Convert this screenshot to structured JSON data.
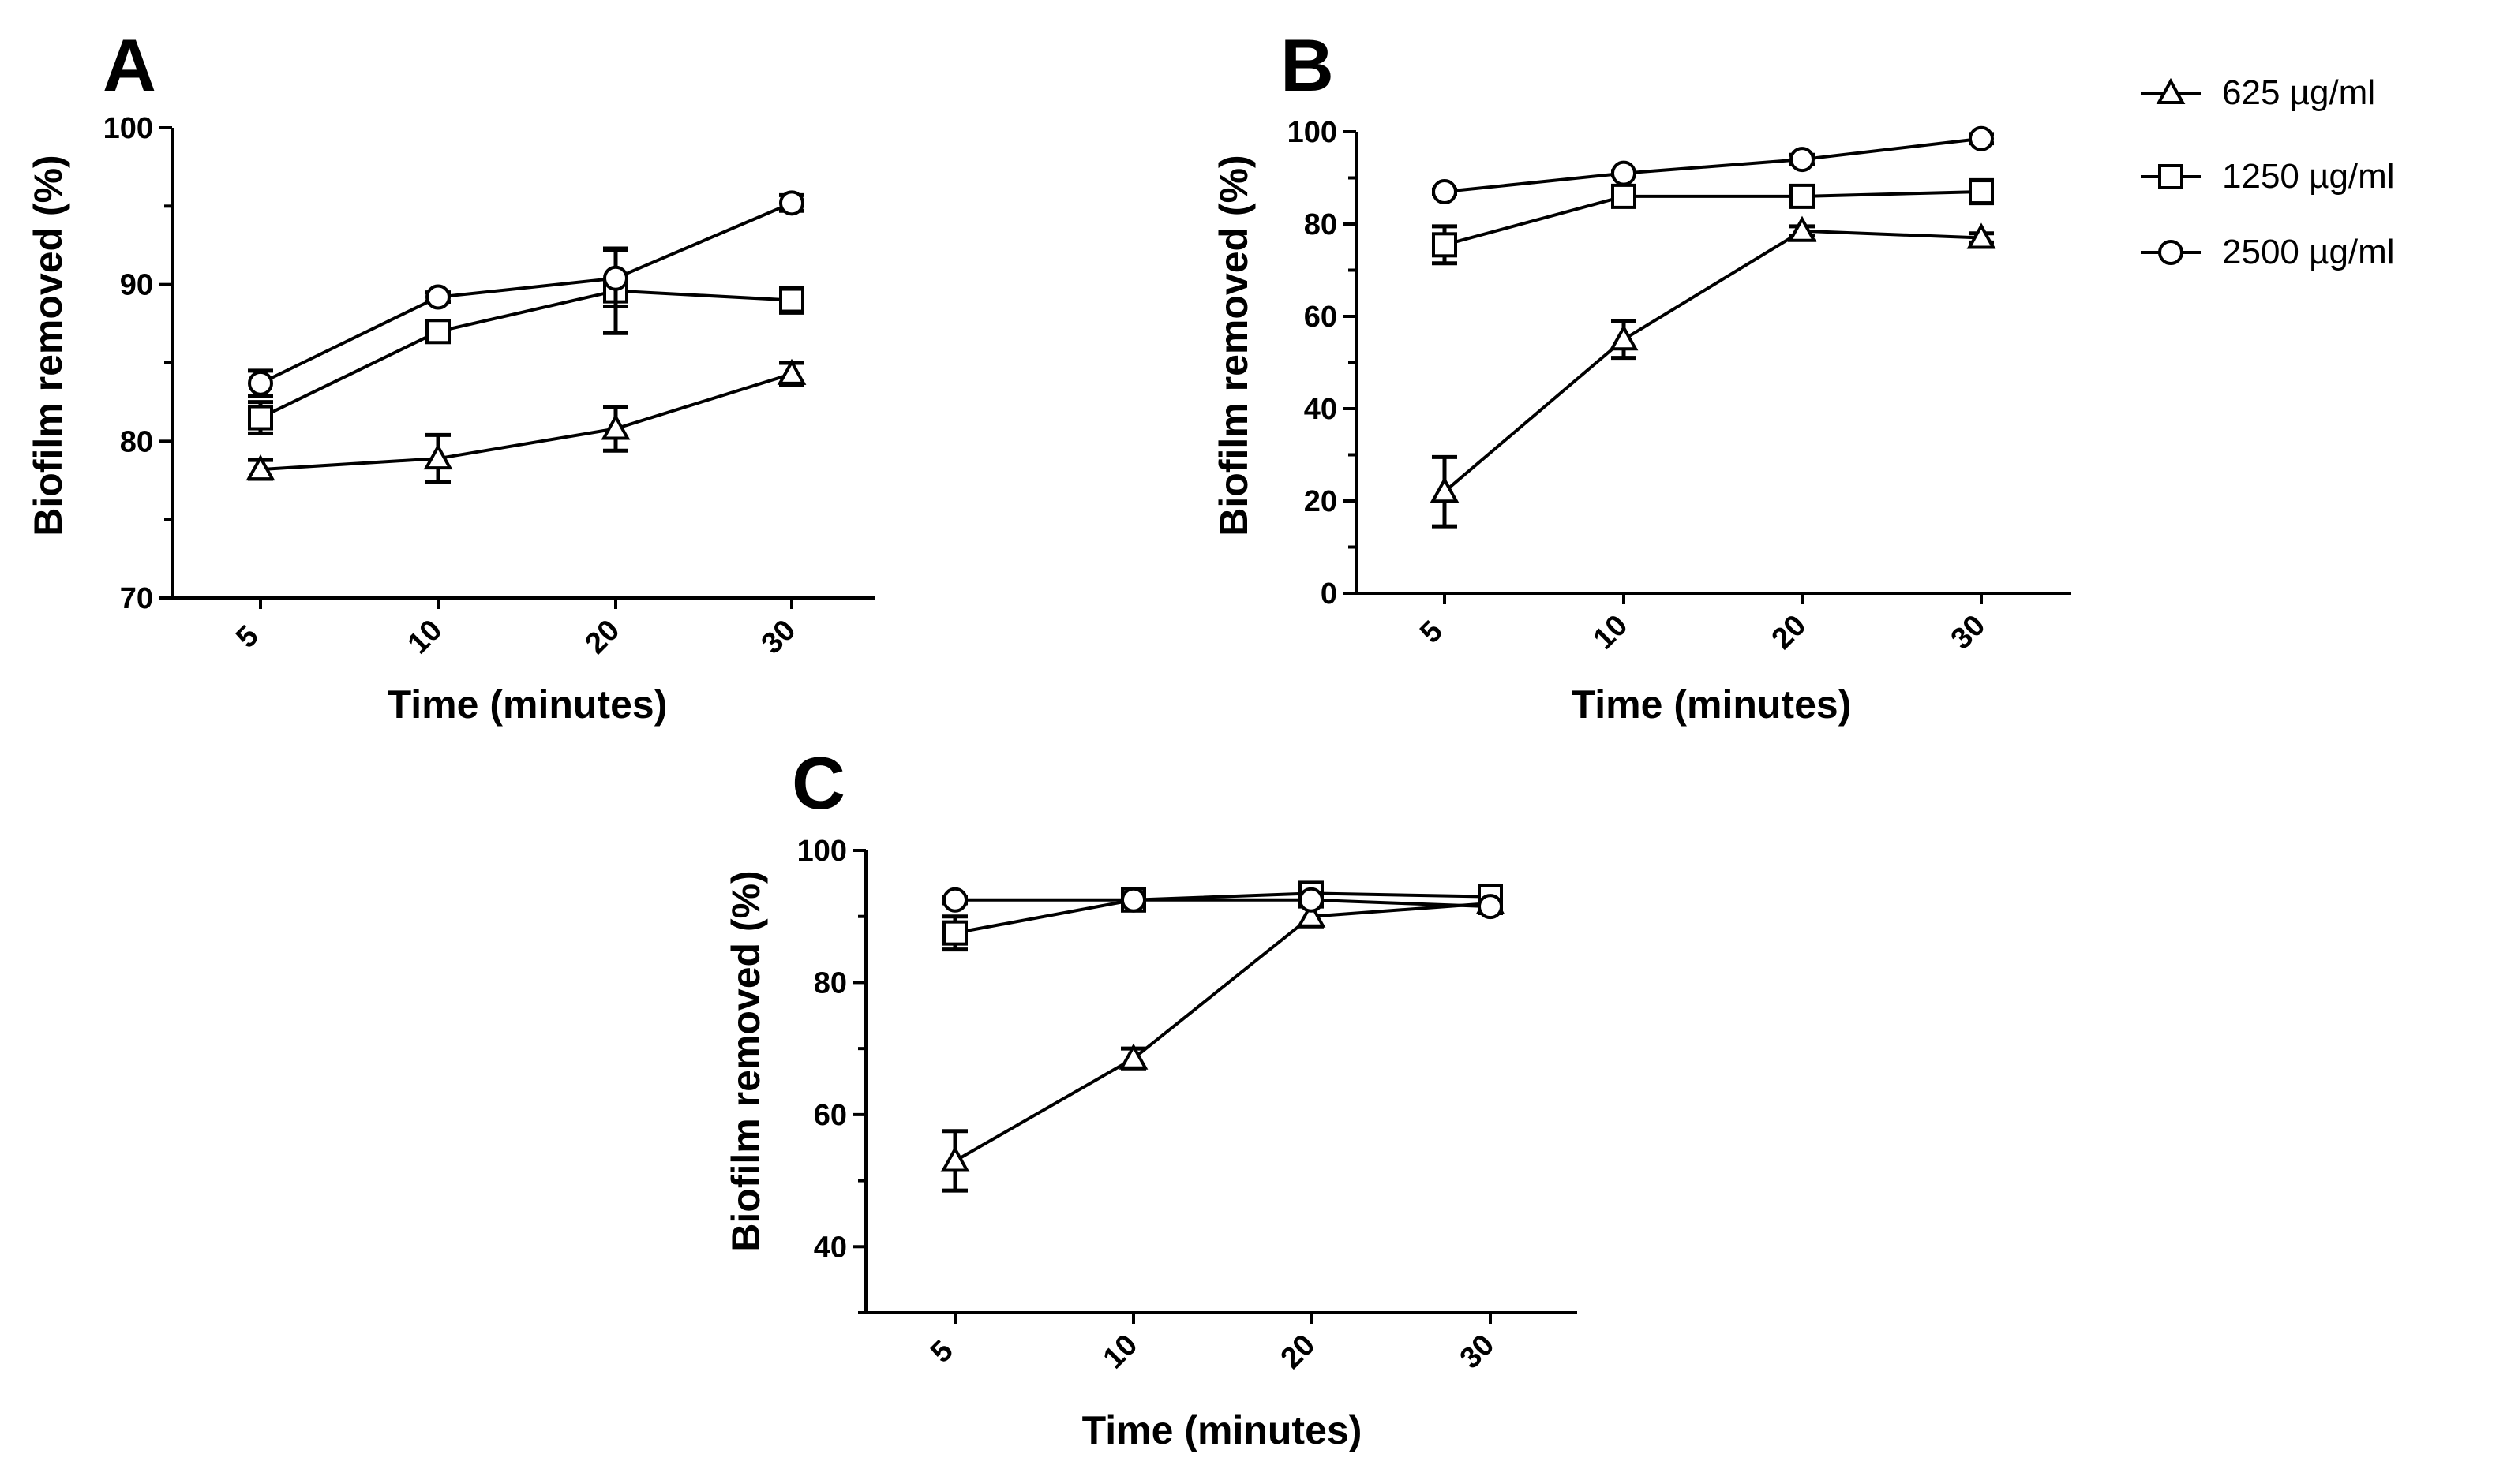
{
  "legend": {
    "entries": [
      {
        "label": "625 µg/ml",
        "marker": "triangle"
      },
      {
        "label": "1250 µg/ml",
        "marker": "square"
      },
      {
        "label": "2500 µg/ml",
        "marker": "circle"
      }
    ]
  },
  "chart_data": [
    {
      "panel": "A",
      "type": "line",
      "title": "",
      "xlabel": "Time (minutes)",
      "ylabel": "Biofilm removed (%)",
      "categories": [
        "5",
        "10",
        "20",
        "30"
      ],
      "ylim": [
        70,
        100
      ],
      "yticks": [
        "70",
        "80",
        "90",
        "100"
      ],
      "series": [
        {
          "name": "625 µg/ml",
          "marker": "triangle",
          "values": [
            78.2,
            78.9,
            80.8,
            84.3
          ],
          "errors": [
            0.6,
            1.5,
            1.4,
            0.7
          ]
        },
        {
          "name": "1250 µg/ml",
          "marker": "square",
          "values": [
            81.5,
            87.0,
            89.6,
            89.0
          ],
          "errors": [
            1.0,
            0.6,
            2.7,
            0.8
          ]
        },
        {
          "name": "2500 µg/ml",
          "marker": "circle",
          "values": [
            83.7,
            89.2,
            90.4,
            95.2
          ],
          "errors": [
            0.8,
            0.3,
            1.8,
            0.5
          ]
        }
      ]
    },
    {
      "panel": "B",
      "type": "line",
      "title": "",
      "xlabel": "Time (minutes)",
      "ylabel": "Biofilm removed (%)",
      "categories": [
        "5",
        "10",
        "20",
        "30"
      ],
      "ylim": [
        0,
        100
      ],
      "yticks": [
        "0",
        "20",
        "40",
        "60",
        "80",
        "100"
      ],
      "series": [
        {
          "name": "625 µg/ml",
          "marker": "triangle",
          "values": [
            22.0,
            55.0,
            78.5,
            77.0
          ],
          "errors": [
            7.5,
            4.0,
            1.0,
            1.0
          ]
        },
        {
          "name": "1250 µg/ml",
          "marker": "square",
          "values": [
            75.5,
            86.0,
            86.0,
            87.0
          ],
          "errors": [
            4.0,
            1.5,
            1.5,
            2.5
          ]
        },
        {
          "name": "2500 µg/ml",
          "marker": "circle",
          "values": [
            87.0,
            91.0,
            94.0,
            98.5
          ],
          "errors": [
            0.5,
            0.5,
            1.0,
            1.0
          ]
        }
      ]
    },
    {
      "panel": "C",
      "type": "line",
      "title": "",
      "xlabel": "Time (minutes)",
      "ylabel": "Biofilm removed (%)",
      "categories": [
        "5",
        "10",
        "20",
        "30"
      ],
      "ylim": [
        30,
        100
      ],
      "yticks": [
        "40",
        "60",
        "80",
        "100"
      ],
      "series": [
        {
          "name": "625 µg/ml",
          "marker": "triangle",
          "values": [
            53.0,
            68.5,
            90.0,
            92.0
          ],
          "errors": [
            4.5,
            1.5,
            1.5,
            1.0
          ]
        },
        {
          "name": "1250 µg/ml",
          "marker": "square",
          "values": [
            87.5,
            92.5,
            93.5,
            93.0
          ],
          "errors": [
            2.5,
            0.8,
            0.5,
            0.8
          ]
        },
        {
          "name": "2500 µg/ml",
          "marker": "circle",
          "values": [
            92.5,
            92.5,
            92.5,
            91.5
          ],
          "errors": [
            0.5,
            0.5,
            0.5,
            1.0
          ]
        }
      ]
    }
  ]
}
